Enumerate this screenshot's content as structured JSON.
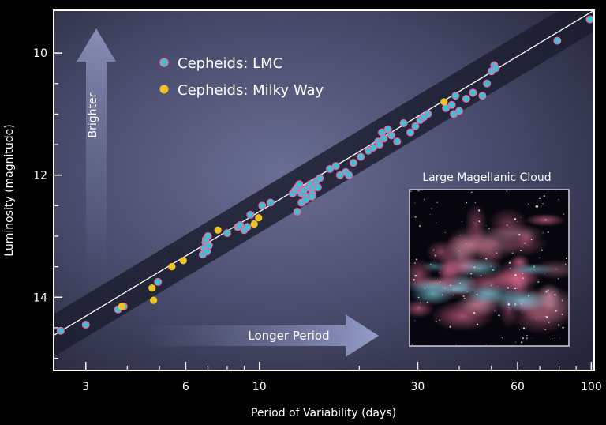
{
  "chart_data": {
    "type": "scatter",
    "xlabel": "Period of Variability (days)",
    "ylabel": "Luminosity (magnitude)",
    "x_scale": "log",
    "xlim": [
      2.4,
      102
    ],
    "ylim": [
      15.2,
      9.3
    ],
    "x_ticks": [
      3,
      6,
      10,
      30,
      60,
      100
    ],
    "y_ticks": [
      10,
      12,
      14
    ],
    "legend_position": "top-left",
    "fit_line": {
      "x": [
        2.2,
        102
      ],
      "y": [
        14.75,
        9.3
      ]
    },
    "band_color": "#1b1d2e",
    "series": [
      {
        "name": "Cepheids: LMC",
        "color": "#34c6d6",
        "x": [
          2.52,
          3.0,
          3.75,
          3.9,
          4.95,
          6.75,
          6.82,
          6.88,
          6.9,
          6.95,
          7.0,
          7.05,
          8.0,
          8.6,
          8.75,
          9.0,
          9.2,
          9.4,
          10.2,
          10.8,
          12.6,
          12.8,
          13.0,
          13.2,
          13.4,
          13.6,
          13.8,
          14.0,
          14.2,
          14.4,
          14.6,
          14.8,
          15.0,
          15.2,
          13.0,
          13.4,
          13.8,
          14.4,
          16.3,
          17.0,
          17.5,
          18.2,
          18.6,
          19.2,
          20.2,
          21.3,
          22.0,
          22.8,
          23.4,
          23.0,
          23.7,
          24.4,
          25.0,
          26.0,
          27.2,
          28.5,
          29.5,
          30.5,
          31.3,
          32.2,
          36.5,
          38.0,
          38.5,
          39.0,
          40.0,
          42.0,
          44.0,
          47.0,
          48.5,
          50.0,
          51.0,
          51.5,
          79.0,
          99.0
        ],
        "y": [
          14.55,
          14.45,
          14.2,
          14.15,
          13.75,
          13.3,
          13.2,
          13.1,
          13.05,
          13.25,
          13.0,
          13.15,
          12.95,
          12.85,
          12.82,
          12.9,
          12.85,
          12.65,
          12.5,
          12.45,
          12.3,
          12.25,
          12.2,
          12.15,
          12.3,
          12.25,
          12.35,
          12.2,
          12.15,
          12.3,
          12.2,
          12.1,
          12.2,
          12.05,
          12.6,
          12.45,
          12.4,
          12.35,
          11.9,
          11.85,
          12.0,
          11.95,
          12.0,
          11.8,
          11.7,
          11.6,
          11.55,
          11.45,
          11.3,
          11.5,
          11.4,
          11.25,
          11.35,
          11.45,
          11.15,
          11.3,
          11.2,
          11.1,
          11.05,
          11.0,
          10.9,
          10.85,
          11.0,
          10.7,
          10.95,
          10.75,
          10.65,
          10.7,
          10.5,
          10.3,
          10.2,
          10.25,
          9.8,
          9.45
        ]
      },
      {
        "name": "Cepheids: Milky Way",
        "color": "#f0c22a",
        "x": [
          3.85,
          4.75,
          4.8,
          5.45,
          5.9,
          7.5,
          9.65,
          9.95,
          36.0
        ],
        "y": [
          14.15,
          13.85,
          14.05,
          13.5,
          13.4,
          12.9,
          12.8,
          12.7,
          10.8
        ]
      }
    ],
    "annotations": {
      "vertical_arrow": "Brighter",
      "horizontal_arrow": "Longer Period",
      "inset_title": "Large Magellanic Cloud"
    }
  }
}
